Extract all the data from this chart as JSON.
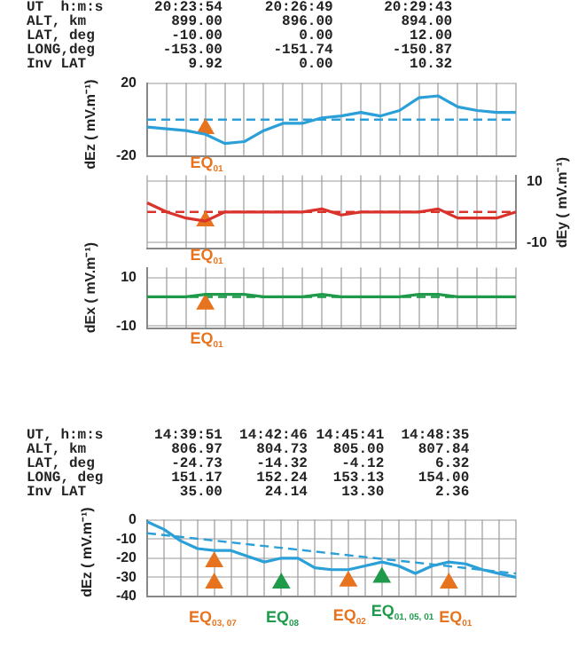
{
  "chart_data": [
    {
      "type": "line",
      "ylabel": "dEz ( mV.m⁻¹)",
      "categories": [
        null,
        null,
        null,
        null,
        null,
        null,
        null,
        null,
        null,
        null,
        null,
        null,
        null,
        null,
        null,
        null,
        null,
        null,
        null,
        null
      ],
      "ylim": [
        -20,
        20
      ],
      "yticks": [
        20,
        -20
      ],
      "grid": true,
      "tick_labels": "y",
      "annotations": [
        "UT  h:m:s      20:23:54     20:26:49      20:29:43",
        "ALT, km          899.00       896.00        894.00",
        "LAT, deg         -10.00         0.00         12.00",
        "LONG,deg        -153.00      -151.74       -150.87",
        "Inv LAT            9.92         0.00         10.32"
      ],
      "ref_lines": [
        {
          "axis": "y",
          "value": 0,
          "color": "#2a9fd8",
          "line_style": "dashed"
        }
      ],
      "series": [
        {
          "color": "#2a9fd8",
          "marker": "none",
          "values": [
            -4,
            -5,
            -6,
            -8,
            -13,
            -12,
            -6,
            -2,
            -2,
            1,
            2,
            4,
            2,
            5,
            12,
            13,
            7,
            5,
            4,
            4
          ]
        },
        {
          "type": "scatter",
          "name": "EQ$_{01}$",
          "color": "#e8731e",
          "marker": "triangle",
          "values": [
            null,
            null,
            null,
            -5,
            null,
            null,
            null,
            null,
            null,
            null,
            null,
            null,
            null,
            null,
            null,
            null,
            null,
            null,
            null,
            null
          ]
        }
      ]
    },
    {
      "type": "line",
      "y2label": "dEy ( mV.m⁻¹)",
      "categories": [
        null,
        null,
        null,
        null,
        null,
        null,
        null,
        null,
        null,
        null,
        null,
        null,
        null,
        null,
        null,
        null,
        null,
        null,
        null,
        null
      ],
      "y2lim": [
        -12,
        12
      ],
      "y2ticks": [
        10,
        -10
      ],
      "grid": true,
      "tick_labels": "y",
      "ref_lines": [
        {
          "axis": "y2",
          "value": 0,
          "color": "#d9332b",
          "line_style": "dashed"
        }
      ],
      "series": [
        {
          "axis": "y2",
          "color": "#d9332b",
          "marker": "none",
          "values": [
            3,
            0,
            -2,
            -3,
            0,
            0,
            0,
            0,
            0,
            1,
            -1,
            0,
            0,
            0,
            0,
            1,
            -2,
            -2,
            -2,
            0
          ]
        },
        {
          "type": "scatter",
          "name": "EQ$_{01}$",
          "axis": "y2",
          "color": "#e8731e",
          "marker": "triangle",
          "values": [
            null,
            null,
            null,
            -3,
            null,
            null,
            null,
            null,
            null,
            null,
            null,
            null,
            null,
            null,
            null,
            null,
            null,
            null,
            null,
            null
          ]
        }
      ]
    },
    {
      "type": "line",
      "ylabel": "dEx ( mV.m⁻¹)",
      "categories": [
        null,
        null,
        null,
        null,
        null,
        null,
        null,
        null,
        null,
        null,
        null,
        null,
        null,
        null,
        null,
        null,
        null,
        null,
        null,
        null
      ],
      "ylim": [
        -11,
        14
      ],
      "yticks": [
        10,
        -10
      ],
      "grid": true,
      "tick_labels": "y",
      "ref_lines": [
        {
          "axis": "y",
          "value": 2,
          "color": "#1f9a4a",
          "line_style": "dashed"
        }
      ],
      "series": [
        {
          "color": "#1f9a4a",
          "marker": "none",
          "values": [
            2,
            2,
            2,
            3,
            3,
            3,
            2,
            2,
            2,
            3,
            2,
            2,
            2,
            2,
            3,
            3,
            2,
            2,
            2,
            2
          ]
        },
        {
          "type": "scatter",
          "name": "EQ$_{01}$",
          "color": "#e8731e",
          "marker": "triangle",
          "values": [
            null,
            null,
            null,
            -1,
            null,
            null,
            null,
            null,
            null,
            null,
            null,
            null,
            null,
            null,
            null,
            null,
            null,
            null,
            null,
            null
          ]
        }
      ]
    },
    {
      "type": "line",
      "ylabel": "dEz ( mV.m⁻¹)",
      "categories": [
        null,
        null,
        null,
        null,
        null,
        null,
        null,
        null,
        null,
        null,
        null,
        null,
        null,
        null,
        null,
        null,
        null,
        null,
        null,
        null,
        null,
        null,
        null
      ],
      "ylim": [
        -40,
        0
      ],
      "yticks": [
        0,
        -10,
        -20,
        -30,
        -40
      ],
      "grid": true,
      "tick_labels": "y",
      "annotations": [
        "UT, h:m:s      14:39:51  14:42:46 14:45:41  14:48:35",
        "ALT, km          806.97    804.73   805.00    807.84",
        "LAT, deg         -24.73    -14.32    -4.12      6.32",
        "LONG, deg        151.17    152.24   153.13    154.00",
        "Inv LAT           35.00     24.14    13.30      2.36"
      ],
      "series": [
        {
          "color": "#2a9fd8",
          "marker": "none",
          "values": [
            -1,
            -5,
            -11,
            -15,
            -16,
            -16,
            -19,
            -22,
            -20,
            -20,
            -25,
            -26,
            -26,
            -24,
            -22,
            -24,
            -28,
            -24,
            -22,
            -23,
            -26,
            -28,
            -30
          ]
        },
        {
          "color": "#2a9fd8",
          "marker": "none",
          "line_style": "dashed",
          "values": [
            -7,
            null,
            null,
            null,
            null,
            null,
            null,
            null,
            null,
            null,
            null,
            null,
            null,
            null,
            null,
            null,
            null,
            null,
            null,
            null,
            null,
            null,
            -28
          ]
        },
        {
          "type": "scatter",
          "color": "#e8731e",
          "marker": "triangle",
          "values": [
            null,
            null,
            null,
            null,
            -22,
            null,
            null,
            null,
            null,
            null,
            null,
            null,
            null,
            null,
            null,
            null,
            null,
            null,
            null,
            null,
            null,
            null,
            null
          ]
        },
        {
          "type": "scatter",
          "name": "EQ$_{03, 07}$",
          "color": "#e8731e",
          "marker": "triangle",
          "values": [
            null,
            null,
            null,
            null,
            -33,
            null,
            null,
            null,
            null,
            null,
            null,
            null,
            null,
            null,
            null,
            null,
            null,
            null,
            null,
            null,
            null,
            null,
            null
          ]
        },
        {
          "type": "scatter",
          "name": "EQ$_{08}$",
          "color": "#1f9a4a",
          "marker": "triangle",
          "values": [
            null,
            null,
            null,
            null,
            null,
            null,
            null,
            null,
            -33,
            null,
            null,
            null,
            null,
            null,
            null,
            null,
            null,
            null,
            null,
            null,
            null,
            null,
            null
          ]
        },
        {
          "type": "scatter",
          "name": "EQ$_{02}$",
          "color": "#e8731e",
          "marker": "triangle",
          "values": [
            null,
            null,
            null,
            null,
            null,
            null,
            null,
            null,
            null,
            null,
            null,
            null,
            -32,
            null,
            null,
            null,
            null,
            null,
            null,
            null,
            null,
            null,
            null
          ]
        },
        {
          "type": "scatter",
          "name": "EQ$_{01, 05, 01}$",
          "color": "#1f9a4a",
          "marker": "triangle",
          "values": [
            null,
            null,
            null,
            null,
            null,
            null,
            null,
            null,
            null,
            null,
            null,
            null,
            null,
            null,
            -30,
            null,
            null,
            null,
            null,
            null,
            null,
            null,
            null
          ]
        },
        {
          "type": "scatter",
          "name": "EQ$_{01}$",
          "color": "#e8731e",
          "marker": "triangle",
          "values": [
            null,
            null,
            null,
            null,
            null,
            null,
            null,
            null,
            null,
            null,
            null,
            null,
            null,
            null,
            null,
            null,
            null,
            null,
            -33,
            null,
            null,
            null,
            null
          ]
        }
      ]
    }
  ]
}
